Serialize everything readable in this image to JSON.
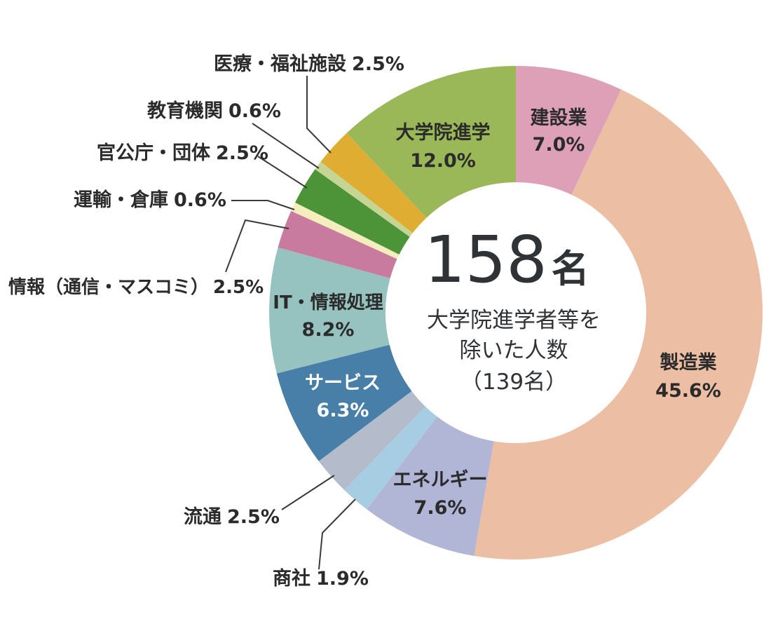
{
  "chart_data": {
    "type": "pie",
    "donut": true,
    "center": {
      "total_value": "158",
      "total_unit": "名",
      "line1": "大学院進学者等を",
      "line2": "除いた人数",
      "line3": "（139名）"
    },
    "slices": [
      {
        "label": "建設業",
        "pct_label": "7.0%",
        "value": 7.0,
        "color": "#dea0b7",
        "text_color": "#2b2b2b"
      },
      {
        "label": "製造業",
        "pct_label": "45.6%",
        "value": 45.6,
        "color": "#ecbea3",
        "text_color": "#2b2b2b"
      },
      {
        "label": "エネルギー",
        "pct_label": "7.6%",
        "value": 7.6,
        "color": "#b1b5d6",
        "text_color": "#2b2b2b"
      },
      {
        "label": "商社",
        "pct_label": "1.9%",
        "value": 1.9,
        "color": "#a6cde1",
        "text_color": "#2b2b2b"
      },
      {
        "label": "流通",
        "pct_label": "2.5%",
        "value": 2.5,
        "color": "#b4bccb",
        "text_color": "#2b2b2b"
      },
      {
        "label": "サービス",
        "pct_label": "6.3%",
        "value": 6.3,
        "color": "#477fa8",
        "text_color": "#ffffff"
      },
      {
        "label": "IT・情報処理",
        "pct_label": "8.2%",
        "value": 8.2,
        "color": "#96c3c0",
        "text_color": "#2b2b2b"
      },
      {
        "label": "情報（通信・マスコミ）",
        "pct_label": "2.5%",
        "value": 2.5,
        "color": "#c97a9f",
        "text_color": "#2b2b2b"
      },
      {
        "label": "運輸・倉庫",
        "pct_label": "0.6%",
        "value": 0.6,
        "color": "#f3eebb",
        "text_color": "#2b2b2b"
      },
      {
        "label": "官公庁・団体",
        "pct_label": "2.5%",
        "value": 2.5,
        "color": "#4d9338",
        "text_color": "#2b2b2b"
      },
      {
        "label": "教育機関",
        "pct_label": "0.6%",
        "value": 0.6,
        "color": "#c4d594",
        "text_color": "#2b2b2b"
      },
      {
        "label": "医療・福祉施設",
        "pct_label": "2.5%",
        "value": 2.5,
        "color": "#dfad32",
        "text_color": "#2b2b2b"
      },
      {
        "label": "大学院進学",
        "pct_label": "12.0%",
        "value": 12.0,
        "color": "#9bb858",
        "text_color": "#2b2b2b"
      }
    ]
  }
}
